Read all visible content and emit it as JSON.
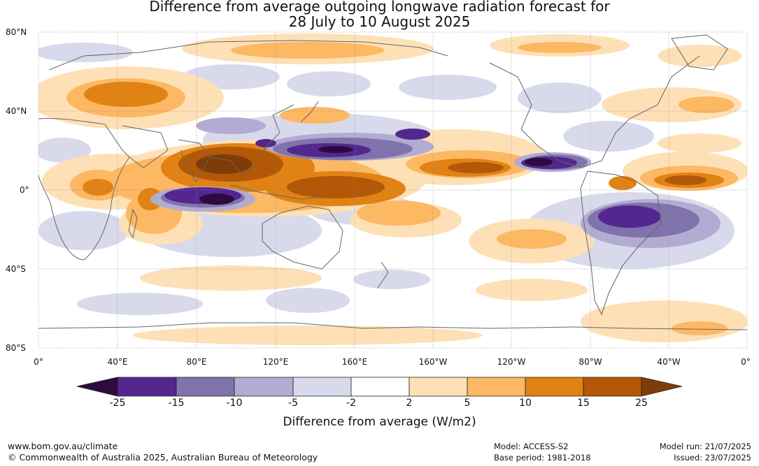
{
  "title_line1": "Difference from average outgoing longwave radiation forecast for",
  "title_line2": "28 July to 10 August 2025",
  "map": {
    "lat_ticks": [
      "80°N",
      "40°N",
      "0°",
      "40°S",
      "80°S"
    ],
    "lon_ticks": [
      "0°",
      "40°E",
      "80°E",
      "120°E",
      "160°E",
      "160°W",
      "120°W",
      "80°W",
      "40°W",
      "0°"
    ]
  },
  "colorbar": {
    "title": "Difference from average (W/m2)",
    "ticks": [
      "-25",
      "-15",
      "-10",
      "-5",
      "-2",
      "2",
      "5",
      "10",
      "15",
      "25"
    ],
    "colors": {
      "lt_-25": "#2d0a40",
      "-25_-15": "#54278f",
      "-15_-10": "#8073ac",
      "-10_-5": "#b2abd2",
      "-5_-2": "#d8daeb",
      "-2_2": "#ffffff",
      "2_5": "#fee0b6",
      "5_10": "#fdb863",
      "10_15": "#e08214",
      "15_25": "#b35806",
      "gt_25": "#7f3b08"
    }
  },
  "footer": {
    "url": "www.bom.gov.au/climate",
    "copyright": "© Commonwealth of Australia 2025, Australian Bureau of Meteorology",
    "model": "Model: ACCESS-S2",
    "base_period": "Base period: 1981-2018",
    "model_run": "Model run: 21/07/2025",
    "issued": "Issued: 23/07/2025"
  }
}
